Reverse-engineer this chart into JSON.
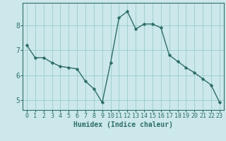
{
  "x": [
    0,
    1,
    2,
    3,
    4,
    5,
    6,
    7,
    8,
    9,
    10,
    11,
    12,
    13,
    14,
    15,
    16,
    17,
    18,
    19,
    20,
    21,
    22,
    23
  ],
  "y": [
    7.2,
    6.7,
    6.7,
    6.5,
    6.35,
    6.3,
    6.25,
    5.75,
    5.45,
    4.9,
    6.5,
    8.3,
    8.55,
    7.85,
    8.05,
    8.05,
    7.9,
    6.8,
    6.55,
    6.3,
    6.1,
    5.85,
    5.6,
    4.9
  ],
  "line_color": "#2e6e68",
  "marker": "D",
  "marker_size": 2,
  "bg_color": "#cce8ea",
  "grid_color": "#99cccc",
  "xlabel": "Humidex (Indice chaleur)",
  "xlabel_fontsize": 7,
  "tick_fontsize": 6,
  "ylim": [
    4.6,
    8.9
  ],
  "xlim": [
    -0.5,
    23.5
  ],
  "yticks": [
    5,
    6,
    7,
    8
  ],
  "xticks": [
    0,
    1,
    2,
    3,
    4,
    5,
    6,
    7,
    8,
    9,
    10,
    11,
    12,
    13,
    14,
    15,
    16,
    17,
    18,
    19,
    20,
    21,
    22,
    23
  ]
}
